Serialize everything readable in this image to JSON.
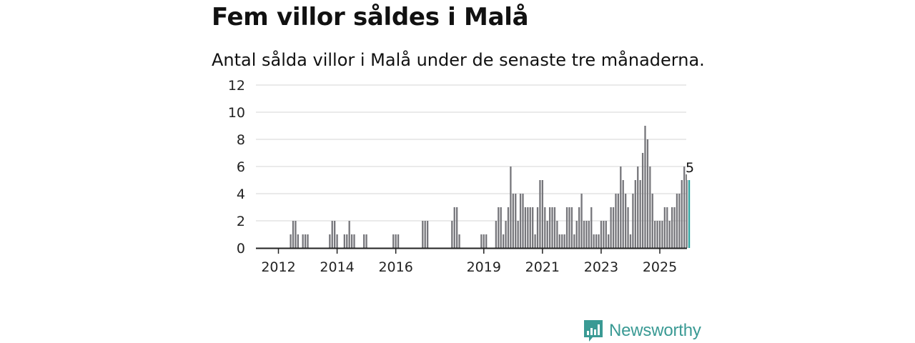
{
  "title": "Fem villor såldes i Malå",
  "subtitle": "Antal sålda villor i Malå under de senaste tre månaderna.",
  "brand": {
    "name": "Newsworthy",
    "color": "#3a9a94",
    "icon": "newsworthy-chart-logo-icon"
  },
  "colors": {
    "bar": "#76767b",
    "highlight": "#2aa3a0",
    "grid": "#dddddd",
    "axis": "#222222"
  },
  "chart_data": {
    "type": "bar",
    "ylim": [
      0,
      12
    ],
    "yticks": [
      0,
      2,
      4,
      6,
      8,
      10,
      12
    ],
    "xticks": [
      {
        "label": "2012",
        "month": 0
      },
      {
        "label": "2014",
        "month": 24
      },
      {
        "label": "2016",
        "month": 48
      },
      {
        "label": "2019",
        "month": 84
      },
      {
        "label": "2021",
        "month": 108
      },
      {
        "label": "2023",
        "month": 132
      },
      {
        "label": "2025",
        "month": 156
      }
    ],
    "x_start": "2011-07",
    "grid": true,
    "annotation": {
      "label": "5",
      "value": 5
    },
    "values": [
      0,
      0,
      0,
      0,
      0,
      0,
      0,
      0,
      0,
      0,
      0,
      1,
      2,
      2,
      1,
      0,
      1,
      1,
      1,
      0,
      0,
      0,
      0,
      0,
      0,
      0,
      0,
      1,
      2,
      2,
      1,
      0,
      0,
      1,
      1,
      2,
      1,
      1,
      0,
      0,
      0,
      1,
      1,
      0,
      0,
      0,
      0,
      0,
      0,
      0,
      0,
      0,
      0,
      1,
      1,
      1,
      0,
      0,
      0,
      0,
      0,
      0,
      0,
      0,
      0,
      2,
      2,
      2,
      0,
      0,
      0,
      0,
      0,
      0,
      0,
      0,
      0,
      2,
      3,
      3,
      1,
      0,
      0,
      0,
      0,
      0,
      0,
      0,
      0,
      1,
      1,
      1,
      0,
      0,
      0,
      2,
      3,
      3,
      1,
      2,
      3,
      6,
      4,
      4,
      2,
      4,
      4,
      3,
      3,
      3,
      3,
      1,
      3,
      5,
      5,
      3,
      2,
      3,
      3,
      3,
      2,
      1,
      1,
      1,
      3,
      3,
      3,
      1,
      2,
      3,
      4,
      2,
      2,
      2,
      3,
      1,
      1,
      1,
      2,
      2,
      2,
      1,
      3,
      3,
      4,
      4,
      6,
      5,
      4,
      3,
      1,
      4,
      5,
      6,
      5,
      7,
      9,
      8,
      6,
      4,
      2,
      2,
      2,
      2,
      3,
      3,
      2,
      3,
      3,
      4,
      4,
      5,
      6,
      5,
      5
    ]
  }
}
